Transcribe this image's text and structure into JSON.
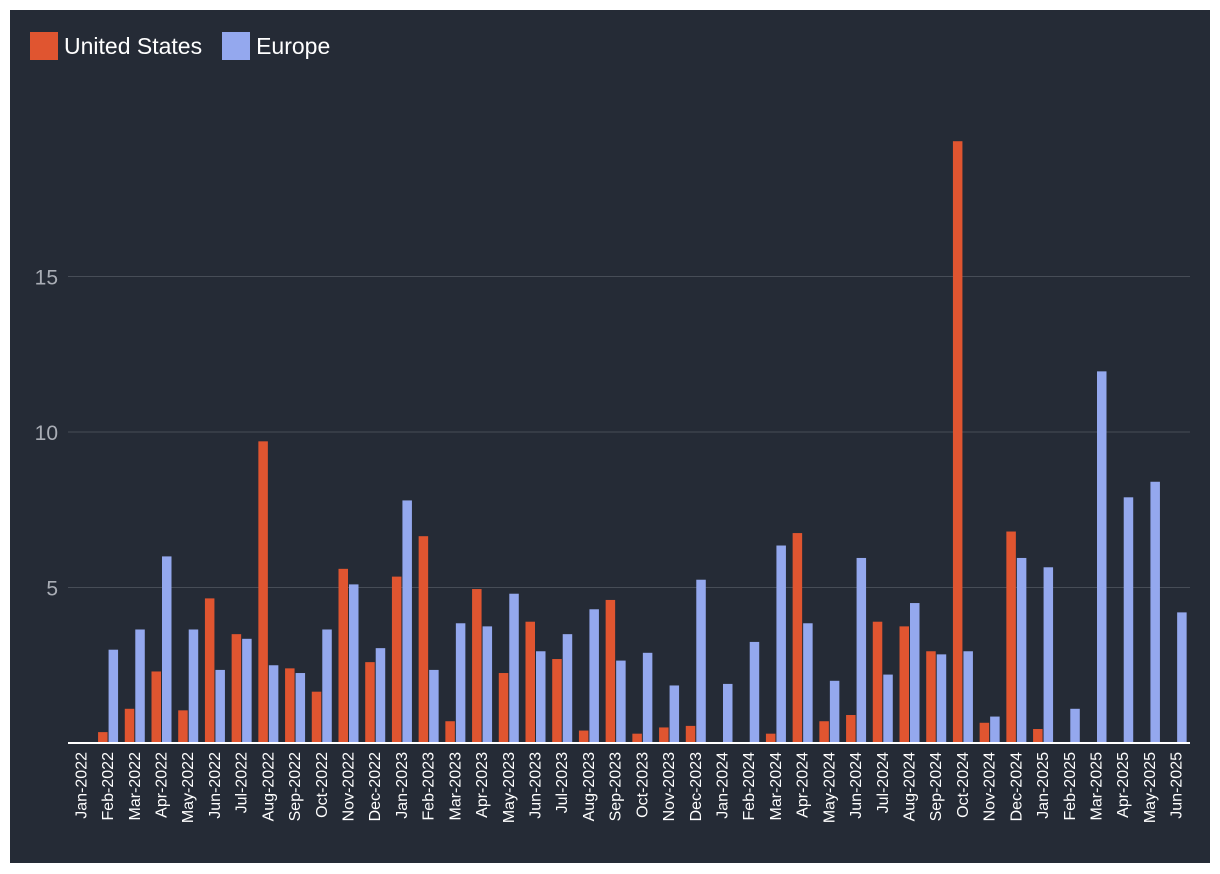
{
  "chart_data": {
    "type": "bar",
    "categories": [
      "Jan-2022",
      "Feb-2022",
      "Mar-2022",
      "Apr-2022",
      "May-2022",
      "Jun-2022",
      "Jul-2022",
      "Aug-2022",
      "Sep-2022",
      "Oct-2022",
      "Nov-2022",
      "Dec-2022",
      "Jan-2023",
      "Feb-2023",
      "Mar-2023",
      "Apr-2023",
      "May-2023",
      "Jun-2023",
      "Jul-2023",
      "Aug-2023",
      "Sep-2023",
      "Oct-2023",
      "Nov-2023",
      "Dec-2023",
      "Jan-2024",
      "Feb-2024",
      "Mar-2024",
      "Apr-2024",
      "May-2024",
      "Jun-2024",
      "Jul-2024",
      "Aug-2024",
      "Sep-2024",
      "Oct-2024",
      "Nov-2024",
      "Dec-2024",
      "Jan-2025",
      "Feb-2025",
      "Mar-2025",
      "Apr-2025",
      "May-2025",
      "Jun-2025"
    ],
    "series": [
      {
        "name": "United States",
        "color": "#e05530",
        "values": [
          0,
          0.35,
          1.1,
          2.3,
          1.05,
          4.65,
          3.5,
          9.7,
          2.4,
          1.65,
          5.6,
          2.6,
          5.35,
          6.65,
          0.7,
          4.95,
          2.25,
          3.9,
          2.7,
          0.4,
          4.6,
          0.3,
          0.5,
          0.55,
          0,
          0,
          0.3,
          6.75,
          0.7,
          0.9,
          3.9,
          3.75,
          2.95,
          19.35,
          0.65,
          6.8,
          0.45,
          0,
          0,
          0,
          0,
          0
        ]
      },
      {
        "name": "Europe",
        "color": "#94a8ee",
        "values": [
          0,
          3.0,
          3.65,
          6.0,
          3.65,
          2.35,
          3.35,
          2.5,
          2.25,
          3.65,
          5.1,
          3.05,
          7.8,
          2.35,
          3.85,
          3.75,
          4.8,
          2.95,
          3.5,
          4.3,
          2.65,
          2.9,
          1.85,
          5.25,
          1.9,
          3.25,
          6.35,
          3.85,
          2.0,
          5.95,
          2.2,
          4.5,
          2.85,
          2.95,
          0.85,
          5.95,
          5.65,
          1.1,
          11.95,
          7.9,
          8.4,
          4.2
        ]
      }
    ],
    "yticks": [
      5,
      10,
      15
    ],
    "ylim": [
      0,
      20
    ],
    "grid": true,
    "legend_position": "top-left",
    "title": "",
    "xlabel": "",
    "ylabel": ""
  }
}
